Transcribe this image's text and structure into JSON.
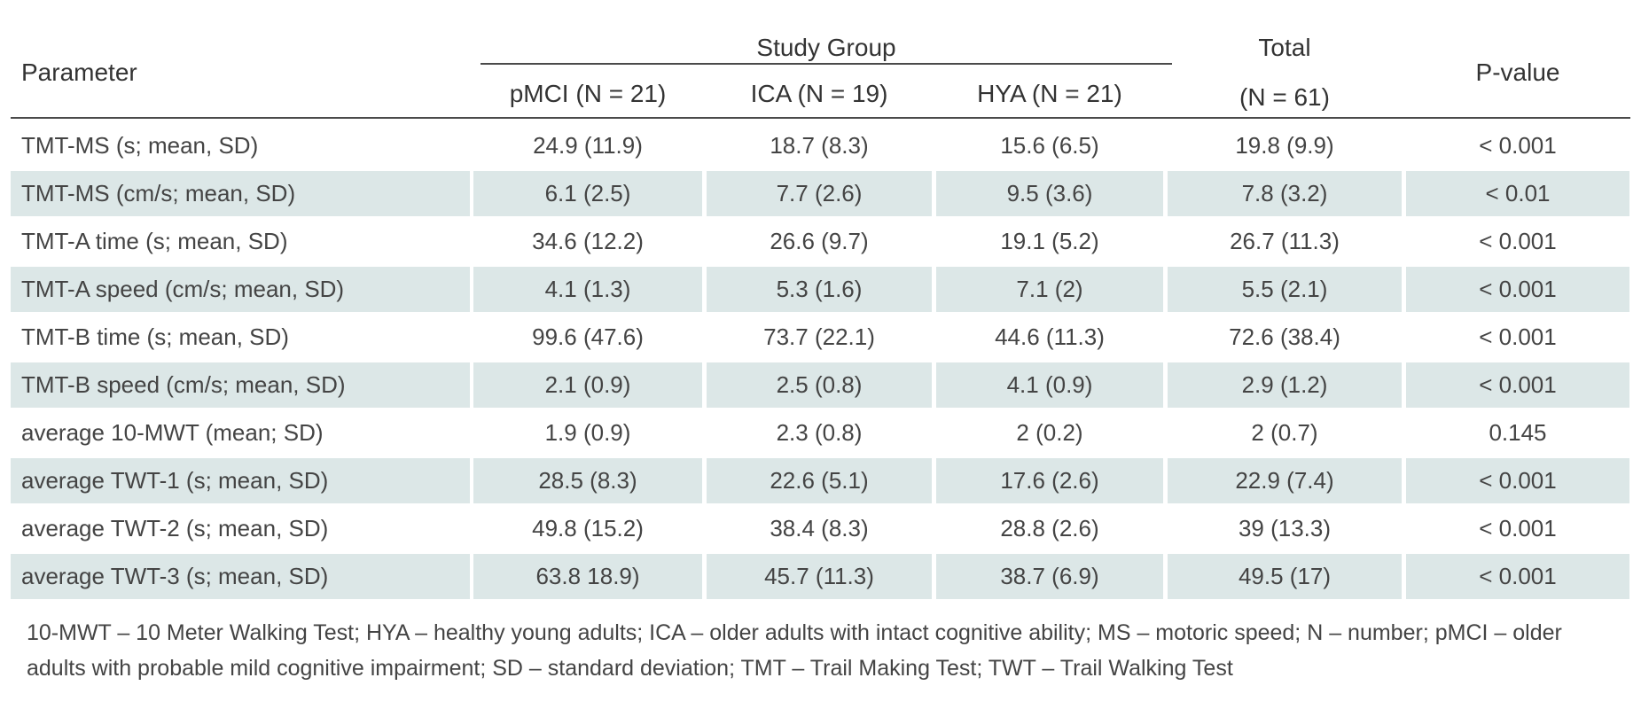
{
  "header": {
    "parameter": "Parameter",
    "study_group": "Study Group",
    "col_pmci": "pMCI (N = 21)",
    "col_ica": "ICA (N = 19)",
    "col_hya": "HYA (N = 21)",
    "total_line1": "Total",
    "total_line2": "(N = 61)",
    "pvalue": "P-value"
  },
  "rows": [
    {
      "param": "TMT-MS (s; mean, SD)",
      "pmci": "24.9 (11.9)",
      "ica": "18.7 (8.3)",
      "hya": "15.6 (6.5)",
      "total": "19.8 (9.9)",
      "p": "< 0.001"
    },
    {
      "param": "TMT-MS (cm/s; mean, SD)",
      "pmci": "6.1 (2.5)",
      "ica": "7.7 (2.6)",
      "hya": "9.5 (3.6)",
      "total": "7.8 (3.2)",
      "p": "< 0.01"
    },
    {
      "param": "TMT-A time (s; mean, SD)",
      "pmci": "34.6 (12.2)",
      "ica": "26.6 (9.7)",
      "hya": "19.1 (5.2)",
      "total": "26.7 (11.3)",
      "p": "< 0.001"
    },
    {
      "param": "TMT-A speed (cm/s; mean, SD)",
      "pmci": "4.1 (1.3)",
      "ica": "5.3 (1.6)",
      "hya": "7.1 (2)",
      "total": "5.5 (2.1)",
      "p": "< 0.001"
    },
    {
      "param": "TMT-B time (s; mean, SD)",
      "pmci": "99.6 (47.6)",
      "ica": "73.7 (22.1)",
      "hya": "44.6 (11.3)",
      "total": "72.6 (38.4)",
      "p": "< 0.001"
    },
    {
      "param": "TMT-B speed (cm/s; mean, SD)",
      "pmci": "2.1 (0.9)",
      "ica": "2.5 (0.8)",
      "hya": "4.1 (0.9)",
      "total": "2.9 (1.2)",
      "p": "< 0.001"
    },
    {
      "param": "average 10-MWT (mean; SD)",
      "pmci": "1.9 (0.9)",
      "ica": "2.3 (0.8)",
      "hya": "2 (0.2)",
      "total": "2 (0.7)",
      "p": "0.145"
    },
    {
      "param": "average TWT-1 (s; mean, SD)",
      "pmci": "28.5 (8.3)",
      "ica": "22.6 (5.1)",
      "hya": "17.6 (2.6)",
      "total": "22.9 (7.4)",
      "p": "< 0.001"
    },
    {
      "param": "average TWT-2 (s; mean, SD)",
      "pmci": "49.8 (15.2)",
      "ica": "38.4 (8.3)",
      "hya": "28.8 (2.6)",
      "total": "39 (13.3)",
      "p": "< 0.001"
    },
    {
      "param": "average TWT-3 (s; mean, SD)",
      "pmci": "63.8 18.9)",
      "ica": "45.7 (11.3)",
      "hya": "38.7 (6.9)",
      "total": "49.5 (17)",
      "p": "< 0.001"
    }
  ],
  "footnote": "10-MWT – 10 Meter Walking Test; HYA – healthy young adults; ICA – older adults with intact cognitive ability; MS – motoric speed; N – number; pMCI – older adults with probable mild cognitive impairment; SD – standard deviation; TMT – Trail Making Test; TWT – Trail Walking Test",
  "colors": {
    "shade": "#dce7e7",
    "rule": "#4a4a4a"
  }
}
